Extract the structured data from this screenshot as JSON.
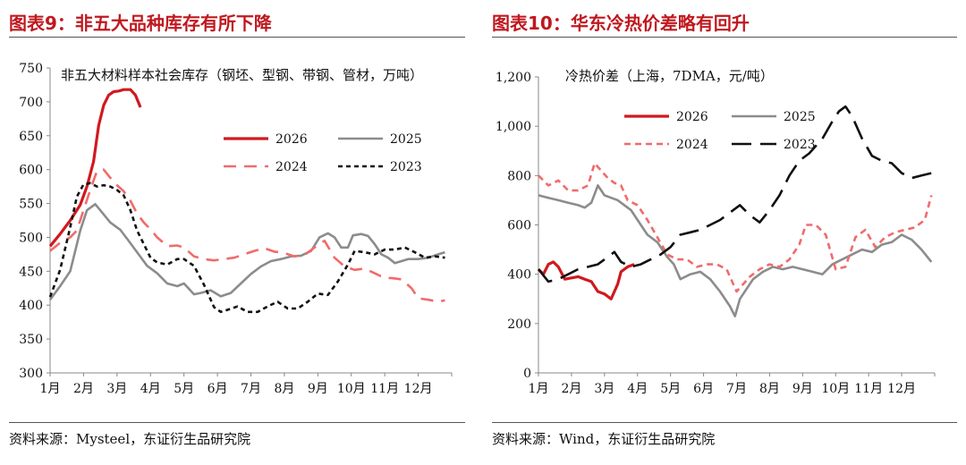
{
  "left": {
    "title": "图表9：非五大品种库存有所下降",
    "source": "资料来源：Mysteel，东证衍生品研究院",
    "chart_data": {
      "type": "line",
      "title": "非五大材料样本社会库存（钢坯、型钢、带钢、管材，万吨）",
      "xlabel": "",
      "ylabel": "",
      "categories": [
        "1月",
        "2月",
        "3月",
        "4月",
        "5月",
        "6月",
        "7月",
        "8月",
        "9月",
        "10月",
        "11月",
        "12月"
      ],
      "ylim": [
        300,
        750
      ],
      "yticks": [
        300,
        350,
        400,
        450,
        500,
        550,
        600,
        650,
        700,
        750
      ],
      "x_range": [
        1,
        13
      ],
      "legend": "top-right",
      "series": [
        {
          "name": "2026",
          "color": "#d0191f",
          "dash": "solid",
          "width": 3.2,
          "x": [
            1,
            1.3,
            1.6,
            1.9,
            2.1,
            2.3,
            2.45,
            2.6,
            2.75,
            2.9,
            3.05,
            3.2,
            3.4,
            3.55,
            3.7
          ],
          "y": [
            487,
            505,
            525,
            548,
            575,
            612,
            665,
            695,
            710,
            715,
            716,
            718,
            718,
            710,
            692
          ]
        },
        {
          "name": "2025",
          "color": "#8c8c8c",
          "dash": "solid",
          "width": 2.6,
          "x": [
            1,
            1.3,
            1.6,
            1.9,
            2.1,
            2.35,
            2.55,
            2.8,
            3.1,
            3.3,
            3.6,
            3.9,
            4.2,
            4.5,
            4.8,
            5,
            5.3,
            5.5,
            5.8,
            6.1,
            6.4,
            6.7,
            7,
            7.3,
            7.6,
            7.9,
            8.2,
            8.5,
            8.8,
            9.05,
            9.3,
            9.5,
            9.7,
            9.9,
            10.05,
            10.3,
            10.5,
            10.7,
            10.9,
            11.1,
            11.3,
            11.5,
            11.7,
            12,
            12.3,
            12.6,
            12.8
          ],
          "y": [
            408,
            428,
            450,
            510,
            540,
            549,
            537,
            522,
            511,
            498,
            478,
            458,
            447,
            432,
            428,
            432,
            416,
            418,
            422,
            413,
            418,
            432,
            446,
            457,
            465,
            468,
            472,
            473,
            480,
            500,
            506,
            500,
            485,
            485,
            503,
            505,
            502,
            490,
            475,
            470,
            462,
            465,
            468,
            468,
            470,
            475,
            478
          ]
        },
        {
          "name": "2024",
          "color": "#f06b6b",
          "dash": "14 9",
          "width": 2.6,
          "x": [
            1,
            1.3,
            1.6,
            1.8,
            2,
            2.2,
            2.4,
            2.6,
            2.8,
            3,
            3.2,
            3.4,
            3.6,
            3.8,
            4,
            4.2,
            4.5,
            4.8,
            5,
            5.3,
            5.6,
            5.9,
            6.2,
            6.5,
            6.8,
            7.1,
            7.4,
            7.7,
            8,
            8.3,
            8.6,
            8.9,
            9.2,
            9.5,
            9.8,
            10.1,
            10.4,
            10.7,
            11,
            11.2,
            11.5,
            11.8,
            12,
            12.3,
            12.6,
            12.8
          ],
          "y": [
            480,
            492,
            500,
            510,
            540,
            570,
            598,
            600,
            588,
            577,
            568,
            554,
            535,
            522,
            512,
            500,
            487,
            488,
            485,
            472,
            468,
            466,
            468,
            470,
            475,
            480,
            484,
            479,
            477,
            472,
            474,
            485,
            495,
            470,
            457,
            452,
            454,
            447,
            440,
            440,
            438,
            425,
            410,
            408,
            405,
            407
          ]
        },
        {
          "name": "2023",
          "color": "#111111",
          "dash": "5 4",
          "width": 2.6,
          "x": [
            1,
            1.3,
            1.6,
            1.8,
            2,
            2.2,
            2.4,
            2.6,
            2.8,
            3,
            3.2,
            3.4,
            3.6,
            3.8,
            4,
            4.2,
            4.5,
            4.8,
            5,
            5.3,
            5.6,
            5.9,
            6.1,
            6.3,
            6.6,
            6.9,
            7.2,
            7.5,
            7.8,
            8.1,
            8.4,
            8.7,
            9,
            9.3,
            9.6,
            9.9,
            10.1,
            10.4,
            10.7,
            11,
            11.3,
            11.6,
            11.9,
            12.2,
            12.5,
            12.8
          ],
          "y": [
            412,
            452,
            515,
            560,
            578,
            580,
            575,
            577,
            575,
            570,
            562,
            540,
            510,
            490,
            470,
            463,
            460,
            468,
            468,
            458,
            430,
            397,
            390,
            393,
            398,
            390,
            390,
            398,
            405,
            395,
            395,
            405,
            417,
            415,
            435,
            460,
            480,
            478,
            475,
            482,
            482,
            485,
            478,
            470,
            472,
            470
          ]
        }
      ]
    }
  },
  "right": {
    "title": "图表10：华东冷热价差略有回升",
    "source": "资料来源：Wind，东证衍生品研究院",
    "chart_data": {
      "type": "line",
      "title": "冷热价差（上海，7DMA，元/吨）",
      "xlabel": "",
      "ylabel": "",
      "categories": [
        "1月",
        "2月",
        "3月",
        "4月",
        "5月",
        "6月",
        "7月",
        "8月",
        "9月",
        "10月",
        "11月",
        "12月"
      ],
      "ylim": [
        0,
        1200
      ],
      "yticks": [
        0,
        200,
        400,
        600,
        800,
        1000,
        1200
      ],
      "ytick_labels": [
        "0",
        "200",
        "400",
        "600",
        "800",
        "1,000",
        "1,200"
      ],
      "x_range": [
        1,
        13
      ],
      "legend": "top",
      "series": [
        {
          "name": "2026",
          "color": "#d0191f",
          "dash": "solid",
          "width": 3.2,
          "x": [
            1,
            1.15,
            1.3,
            1.45,
            1.6,
            1.8,
            2,
            2.2,
            2.4,
            2.6,
            2.8,
            3,
            3.1,
            3.2,
            3.3,
            3.4,
            3.5,
            3.7,
            3.9
          ],
          "y": [
            420,
            400,
            440,
            450,
            430,
            380,
            385,
            390,
            380,
            370,
            330,
            320,
            310,
            300,
            330,
            360,
            410,
            430,
            440
          ]
        },
        {
          "name": "2025",
          "color": "#8c8c8c",
          "dash": "solid",
          "width": 2.6,
          "x": [
            1,
            1.3,
            1.6,
            1.9,
            2.2,
            2.4,
            2.6,
            2.8,
            3,
            3.2,
            3.4,
            3.6,
            3.8,
            4,
            4.3,
            4.6,
            4.9,
            5.1,
            5.3,
            5.6,
            5.9,
            6.2,
            6.5,
            6.8,
            6.95,
            7.1,
            7.3,
            7.5,
            7.8,
            8.1,
            8.4,
            8.7,
            9,
            9.3,
            9.6,
            9.9,
            10.2,
            10.5,
            10.8,
            11.1,
            11.4,
            11.7,
            12,
            12.3,
            12.6,
            12.9
          ],
          "y": [
            720,
            710,
            700,
            690,
            680,
            670,
            690,
            760,
            720,
            710,
            700,
            680,
            660,
            620,
            560,
            530,
            470,
            440,
            380,
            400,
            410,
            380,
            330,
            270,
            230,
            300,
            340,
            380,
            410,
            430,
            420,
            430,
            420,
            410,
            400,
            440,
            460,
            480,
            500,
            490,
            520,
            530,
            560,
            540,
            500,
            450
          ]
        },
        {
          "name": "2024",
          "color": "#f06b6b",
          "dash": "7 5",
          "width": 2.6,
          "x": [
            1,
            1.3,
            1.6,
            1.9,
            2.2,
            2.5,
            2.7,
            2.9,
            3.1,
            3.3,
            3.5,
            3.7,
            4,
            4.3,
            4.6,
            4.9,
            5.2,
            5.5,
            5.8,
            6.1,
            6.4,
            6.7,
            7,
            7.2,
            7.4,
            7.7,
            8,
            8.3,
            8.6,
            8.9,
            9.1,
            9.4,
            9.7,
            10,
            10.3,
            10.6,
            10.9,
            11.2,
            11.5,
            11.8,
            12.1,
            12.4,
            12.7,
            12.9
          ],
          "y": [
            800,
            760,
            780,
            740,
            740,
            760,
            850,
            820,
            790,
            770,
            760,
            700,
            680,
            620,
            550,
            480,
            460,
            460,
            430,
            440,
            440,
            420,
            330,
            360,
            390,
            420,
            440,
            430,
            460,
            520,
            600,
            600,
            560,
            420,
            430,
            550,
            580,
            510,
            550,
            570,
            580,
            590,
            620,
            720
          ]
        },
        {
          "name": "2023",
          "color": "#111111",
          "dash": "22 10",
          "width": 2.6,
          "x": [
            1,
            1.3,
            1.6,
            1.9,
            2.2,
            2.5,
            2.8,
            3.1,
            3.3,
            3.5,
            3.8,
            4.1,
            4.4,
            4.7,
            5,
            5.3,
            5.6,
            5.9,
            6.2,
            6.5,
            6.8,
            7.1,
            7.4,
            7.7,
            8,
            8.3,
            8.6,
            8.9,
            9.2,
            9.4,
            9.6,
            9.9,
            10.1,
            10.3,
            10.5,
            10.8,
            11.1,
            11.4,
            11.7,
            12,
            12.3,
            12.6,
            12.9
          ],
          "y": [
            420,
            370,
            380,
            400,
            420,
            430,
            440,
            470,
            490,
            450,
            430,
            440,
            460,
            480,
            510,
            560,
            570,
            580,
            600,
            620,
            650,
            680,
            640,
            610,
            660,
            720,
            800,
            860,
            890,
            920,
            950,
            1020,
            1060,
            1080,
            1040,
            950,
            880,
            860,
            850,
            810,
            790,
            800,
            810
          ]
        }
      ]
    }
  }
}
